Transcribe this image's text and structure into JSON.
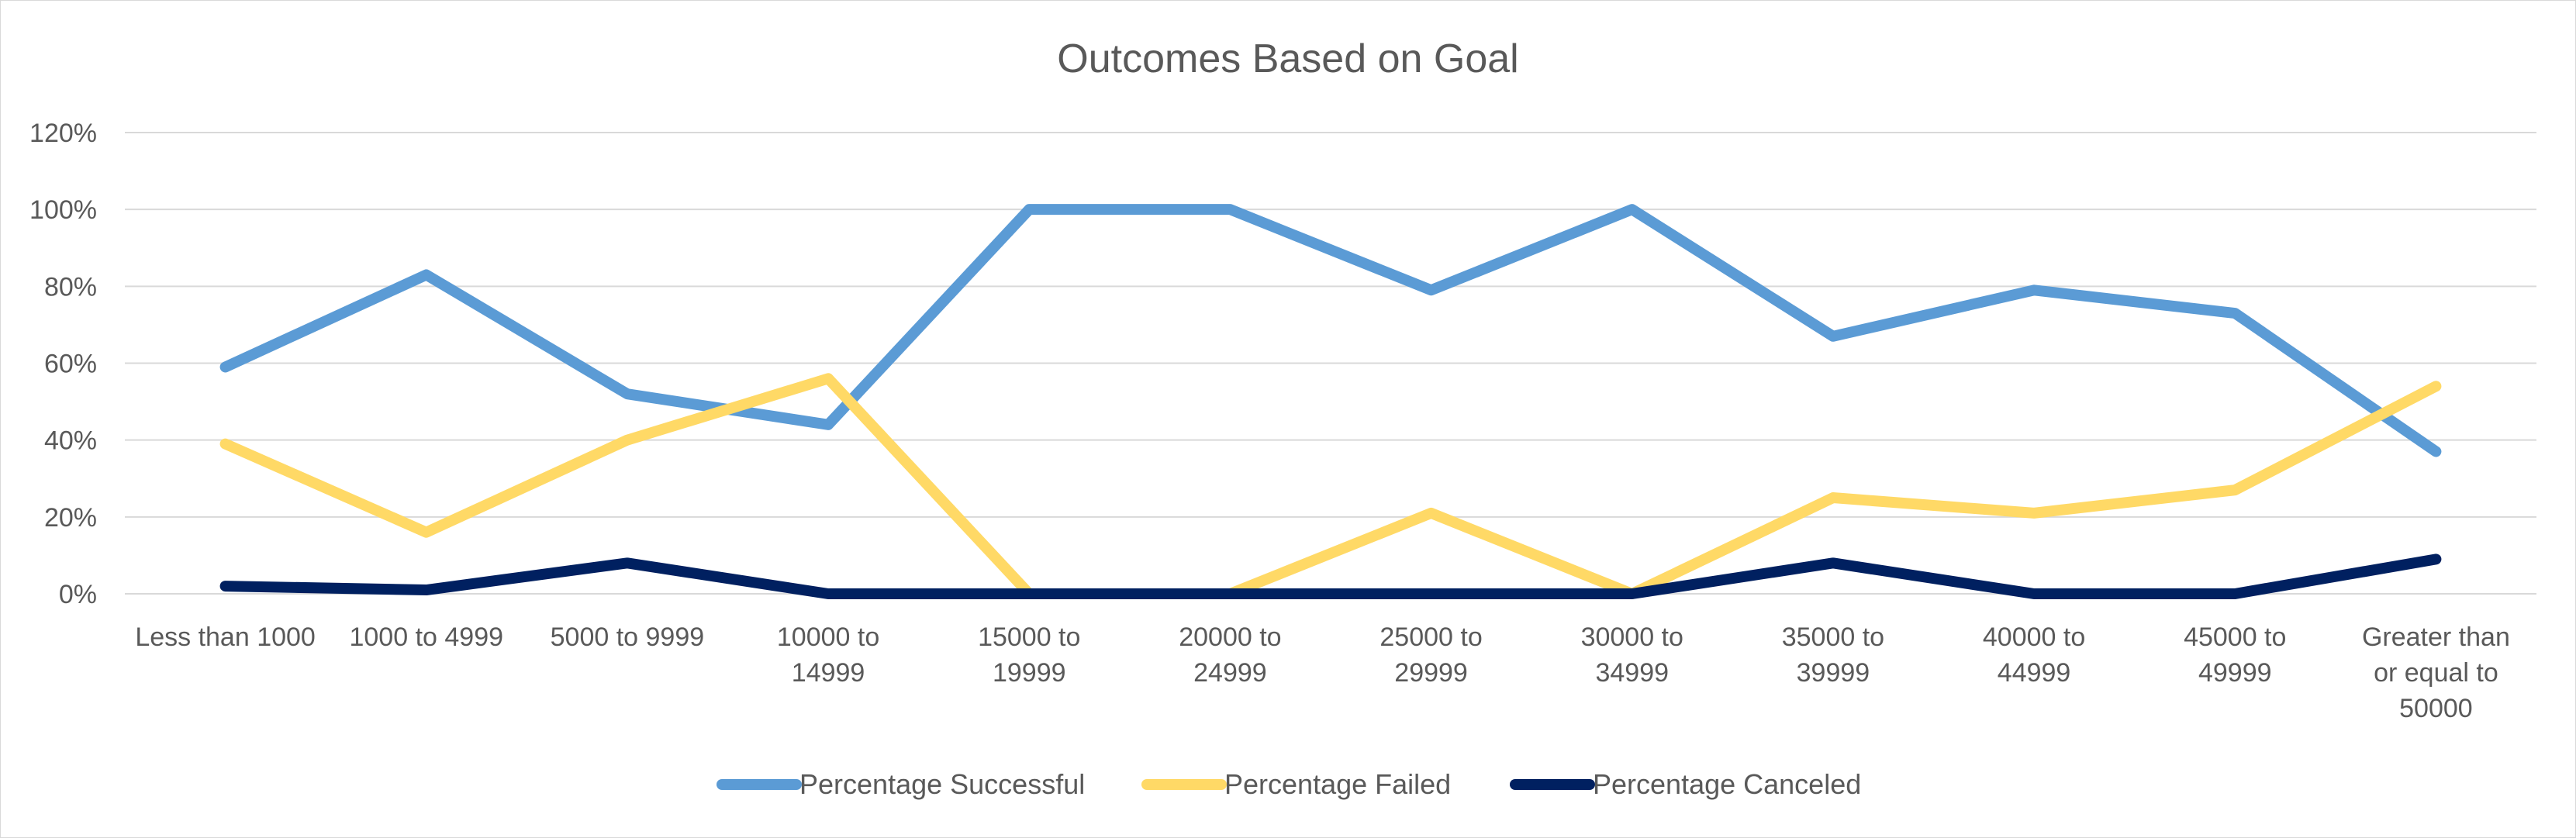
{
  "chart_data": {
    "type": "line",
    "title": "Outcomes Based on Goal",
    "xlabel": "",
    "ylabel": "",
    "ylim": [
      0,
      1.2
    ],
    "yticks": [
      0,
      0.2,
      0.4,
      0.6,
      0.8,
      1.0,
      1.2
    ],
    "ytick_labels": [
      "0%",
      "20%",
      "40%",
      "60%",
      "80%",
      "100%",
      "120%"
    ],
    "grid": true,
    "legend_position": "bottom",
    "categories": [
      "Less than 1000",
      "1000 to 4999",
      "5000 to 9999",
      "10000 to 14999",
      "15000 to 19999",
      "20000 to 24999",
      "25000 to 29999",
      "30000 to 34999",
      "35000 to 39999",
      "40000 to 44999",
      "45000 to 49999",
      "Greater than or equal to 50000"
    ],
    "category_label_lines": [
      [
        "Less than 1000"
      ],
      [
        "1000 to 4999"
      ],
      [
        "5000 to 9999"
      ],
      [
        "10000 to",
        "14999"
      ],
      [
        "15000 to",
        "19999"
      ],
      [
        "20000 to",
        "24999"
      ],
      [
        "25000 to",
        "29999"
      ],
      [
        "30000 to",
        "34999"
      ],
      [
        "35000 to",
        "39999"
      ],
      [
        "40000 to",
        "44999"
      ],
      [
        "45000 to",
        "49999"
      ],
      [
        "Greater than",
        "or equal to",
        "50000"
      ]
    ],
    "series": [
      {
        "name": "Percentage Successful",
        "color": "#5b9bd5",
        "values": [
          0.59,
          0.83,
          0.52,
          0.44,
          1.0,
          1.0,
          0.79,
          1.0,
          0.67,
          0.79,
          0.73,
          0.37
        ]
      },
      {
        "name": "Percentage Failed",
        "color": "#ffd966",
        "values": [
          0.39,
          0.16,
          0.4,
          0.56,
          0.0,
          0.0,
          0.21,
          0.0,
          0.25,
          0.21,
          0.27,
          0.54
        ]
      },
      {
        "name": "Percentage Canceled",
        "color": "#002060",
        "values": [
          0.02,
          0.01,
          0.08,
          0.0,
          0.0,
          0.0,
          0.0,
          0.0,
          0.08,
          0.0,
          0.0,
          0.09
        ]
      }
    ]
  }
}
